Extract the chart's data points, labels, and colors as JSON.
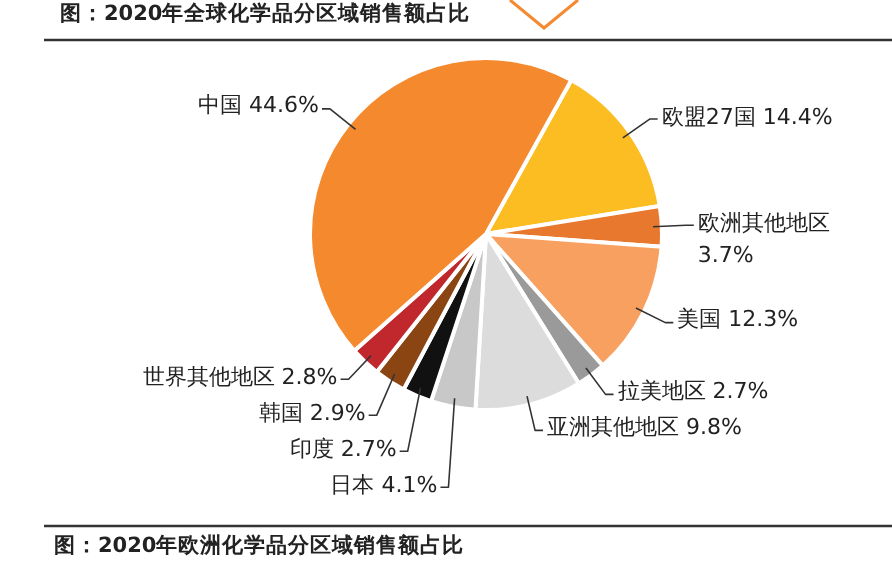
{
  "chart_data": {
    "type": "pie",
    "title": "图：2020年全球化学品分区域销售额占比",
    "categories": [
      "欧盟27国",
      "欧洲其他地区",
      "美国",
      "拉美地区",
      "亚洲其他地区",
      "日本",
      "印度",
      "韩国",
      "世界其他地区",
      "中国"
    ],
    "values": [
      14.4,
      3.7,
      12.3,
      2.7,
      9.8,
      4.1,
      2.7,
      2.9,
      2.8,
      44.6
    ],
    "value_labels": [
      "14.4%",
      "3.7%",
      "12.3%",
      "2.7%",
      "9.8%",
      "4.1%",
      "2.7%",
      "2.9%",
      "2.8%",
      "44.6%"
    ],
    "colors": [
      "#fbbd21",
      "#e8782e",
      "#f8a060",
      "#9a9a9a",
      "#dcdcdc",
      "#c8c8c8",
      "#111111",
      "#8b4513",
      "#c0282d",
      "#f5892e"
    ],
    "annotations": [
      "图：2020年欧洲化学品分区域销售额占比"
    ]
  }
}
